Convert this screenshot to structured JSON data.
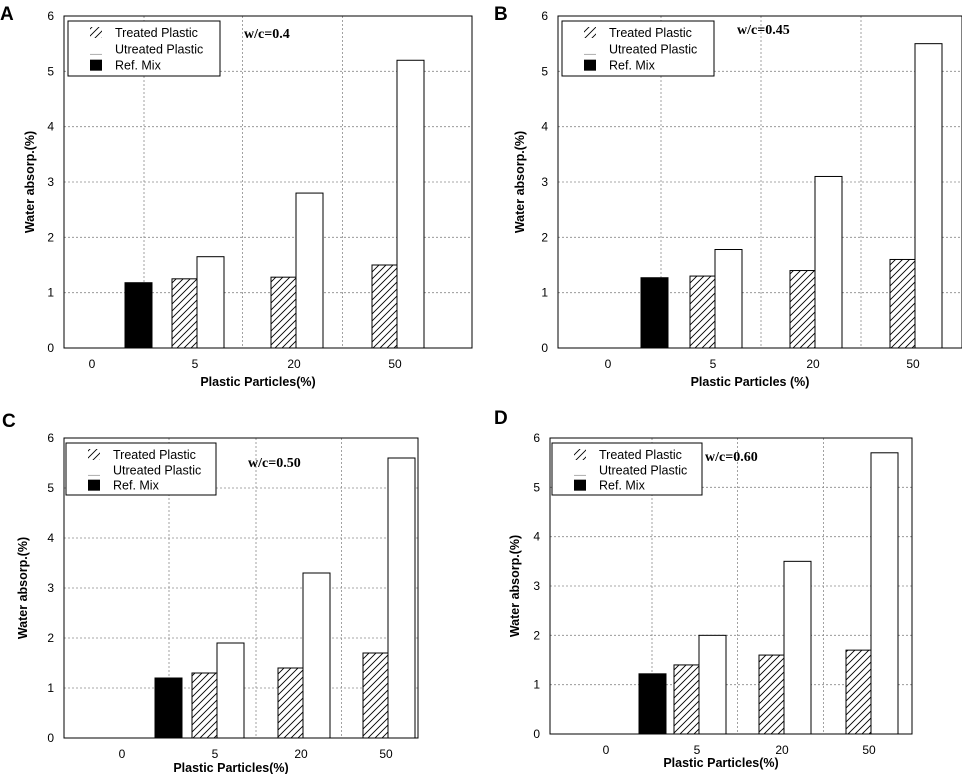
{
  "chart_data": [
    {
      "type": "bar",
      "panel": "A",
      "annotation": "w/c=0.4",
      "categories": [
        "0",
        "5",
        "20",
        "50"
      ],
      "xlabel": "Plastic Particles(%)",
      "ylabel": "Water absorp.(%)",
      "ylim": [
        0,
        6
      ],
      "yticks": [
        "0",
        "1",
        "2",
        "3",
        "4",
        "5",
        "6"
      ],
      "legend": [
        "Treated Plastic",
        "Utreated Plastic",
        "Ref. Mix"
      ],
      "series": [
        {
          "name": "Ref. Mix",
          "values": [
            1.18,
            null,
            null,
            null
          ]
        },
        {
          "name": "Treated Plastic",
          "values": [
            null,
            1.25,
            1.28,
            1.5
          ]
        },
        {
          "name": "Utreated Plastic",
          "values": [
            null,
            1.65,
            2.8,
            5.2
          ]
        }
      ]
    },
    {
      "type": "bar",
      "panel": "B",
      "annotation": "w/c=0.45",
      "categories": [
        "0",
        "5",
        "20",
        "50"
      ],
      "xlabel": "Plastic Particles (%)",
      "ylabel": "Water absorp.(%)",
      "ylim": [
        0,
        6
      ],
      "yticks": [
        "0",
        "1",
        "2",
        "3",
        "4",
        "5",
        "6"
      ],
      "legend": [
        "Treated Plastic",
        "Utreated Plastic",
        "Ref. Mix"
      ],
      "series": [
        {
          "name": "Ref. Mix",
          "values": [
            1.27,
            null,
            null,
            null
          ]
        },
        {
          "name": "Treated Plastic",
          "values": [
            null,
            1.3,
            1.4,
            1.6
          ]
        },
        {
          "name": "Utreated Plastic",
          "values": [
            null,
            1.78,
            3.1,
            5.5
          ]
        }
      ]
    },
    {
      "type": "bar",
      "panel": "C",
      "annotation": "w/c=0.50",
      "categories": [
        "0",
        "5",
        "20",
        "50"
      ],
      "xlabel": "Plastic Particles(%)",
      "ylabel": "Water absorp.(%)",
      "ylim": [
        0,
        6
      ],
      "yticks": [
        "0",
        "1",
        "2",
        "3",
        "4",
        "5",
        "6"
      ],
      "legend": [
        "Treated Plastic",
        "Utreated Plastic",
        "Ref. Mix"
      ],
      "series": [
        {
          "name": "Ref. Mix",
          "values": [
            1.2,
            null,
            null,
            null
          ]
        },
        {
          "name": "Treated Plastic",
          "values": [
            null,
            1.3,
            1.4,
            1.7
          ]
        },
        {
          "name": "Utreated Plastic",
          "values": [
            null,
            1.9,
            3.3,
            5.6
          ]
        }
      ]
    },
    {
      "type": "bar",
      "panel": "D",
      "annotation": "w/c=0.60",
      "categories": [
        "0",
        "5",
        "20",
        "50"
      ],
      "xlabel": "Plastic Particles(%)",
      "ylabel": "Water absorp.(%)",
      "ylim": [
        0,
        6
      ],
      "yticks": [
        "0",
        "1",
        "2",
        "3",
        "4",
        "5",
        "6"
      ],
      "legend": [
        "Treated Plastic",
        "Utreated Plastic",
        "Ref. Mix"
      ],
      "series": [
        {
          "name": "Ref. Mix",
          "values": [
            1.22,
            null,
            null,
            null
          ]
        },
        {
          "name": "Treated Plastic",
          "values": [
            null,
            1.4,
            1.6,
            1.7
          ]
        },
        {
          "name": "Utreated Plastic",
          "values": [
            null,
            2.0,
            3.5,
            5.7
          ]
        }
      ]
    }
  ],
  "colors": {
    "ref_mix": "#000000",
    "untreated": "#ffffff",
    "treated_hatch": "#000000"
  }
}
